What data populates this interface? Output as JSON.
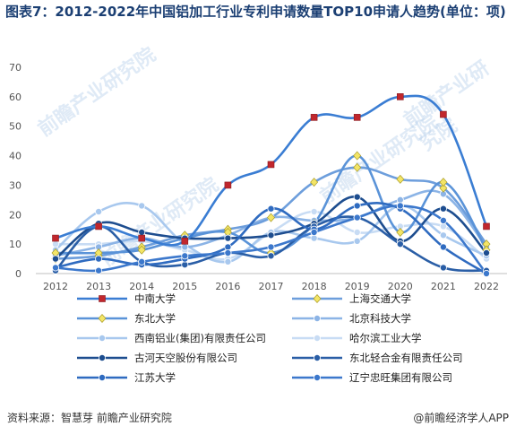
{
  "title": "图表7：2012-2022年中国铝加工行业专利申请数量TOP10申请人趋势(单位：项)",
  "watermark": "前瞻产业研究院",
  "footer": {
    "source": "资料来源：智慧芽 前瞻产业研究院",
    "brand": "@前瞻经济学人APP"
  },
  "chart_data": {
    "type": "line",
    "title": "图表7：2012-2022年中国铝加工行业专利申请数量TOP10申请人趋势(单位：项)",
    "x": [
      "2012",
      "2013",
      "2014",
      "2015",
      "2016",
      "2017",
      "2018",
      "2019",
      "2020",
      "2021",
      "2022"
    ],
    "y_ticks": [
      0,
      10,
      20,
      30,
      40,
      50,
      60,
      70
    ],
    "ylim": [
      0,
      70
    ],
    "grid": false,
    "legend_position": "bottom",
    "series": [
      {
        "name": "中南大学",
        "color": "#3a7dd3",
        "marker": "square-red",
        "values": [
          12,
          16,
          12,
          11,
          30,
          37,
          53,
          53,
          60,
          54,
          16
        ]
      },
      {
        "name": "上海交通大学",
        "color": "#6d9edc",
        "marker": "diamond-yellow",
        "values": [
          5,
          6,
          9,
          13,
          15,
          19,
          31,
          36,
          32,
          29,
          10
        ]
      },
      {
        "name": "东北大学",
        "color": "#5a93d8",
        "marker": "diamond-yellow",
        "values": [
          7,
          7,
          8,
          12,
          14,
          7,
          17,
          40,
          14,
          31,
          8
        ]
      },
      {
        "name": "北京科技大学",
        "color": "#8cb4e6",
        "marker": "circle",
        "values": [
          6,
          9,
          12,
          9,
          13,
          19,
          18,
          19,
          25,
          27,
          9
        ]
      },
      {
        "name": "西南铝业(集团)有限责任公司",
        "color": "#a8c8ee",
        "marker": "circle",
        "values": [
          8,
          21,
          23,
          10,
          4,
          14,
          12,
          11,
          23,
          13,
          6
        ]
      },
      {
        "name": "哈尔滨工业大学",
        "color": "#c8dcf4",
        "marker": "circle",
        "values": [
          10,
          10,
          11,
          8,
          5,
          14,
          21,
          14,
          16,
          16,
          5
        ]
      },
      {
        "name": "古河天空股份有限公司",
        "color": "#1d4d8f",
        "marker": "circle",
        "values": [
          5,
          17,
          14,
          12,
          12,
          13,
          17,
          26,
          11,
          22,
          7
        ]
      },
      {
        "name": "东北轻合金有限责任公司",
        "color": "#2a5ea6",
        "marker": "circle",
        "values": [
          1,
          16,
          4,
          3,
          7,
          6,
          16,
          19,
          10,
          2,
          1
        ]
      },
      {
        "name": "江苏大学",
        "color": "#2f6bc0",
        "marker": "circle",
        "values": [
          2,
          5,
          3,
          5,
          9,
          22,
          15,
          23,
          22,
          9,
          0
        ]
      },
      {
        "name": "辽宁忠旺集团有限公司",
        "color": "#3c78cc",
        "marker": "circle",
        "values": [
          2,
          1,
          4,
          6,
          7,
          9,
          14,
          19,
          23,
          18,
          0
        ]
      }
    ]
  }
}
